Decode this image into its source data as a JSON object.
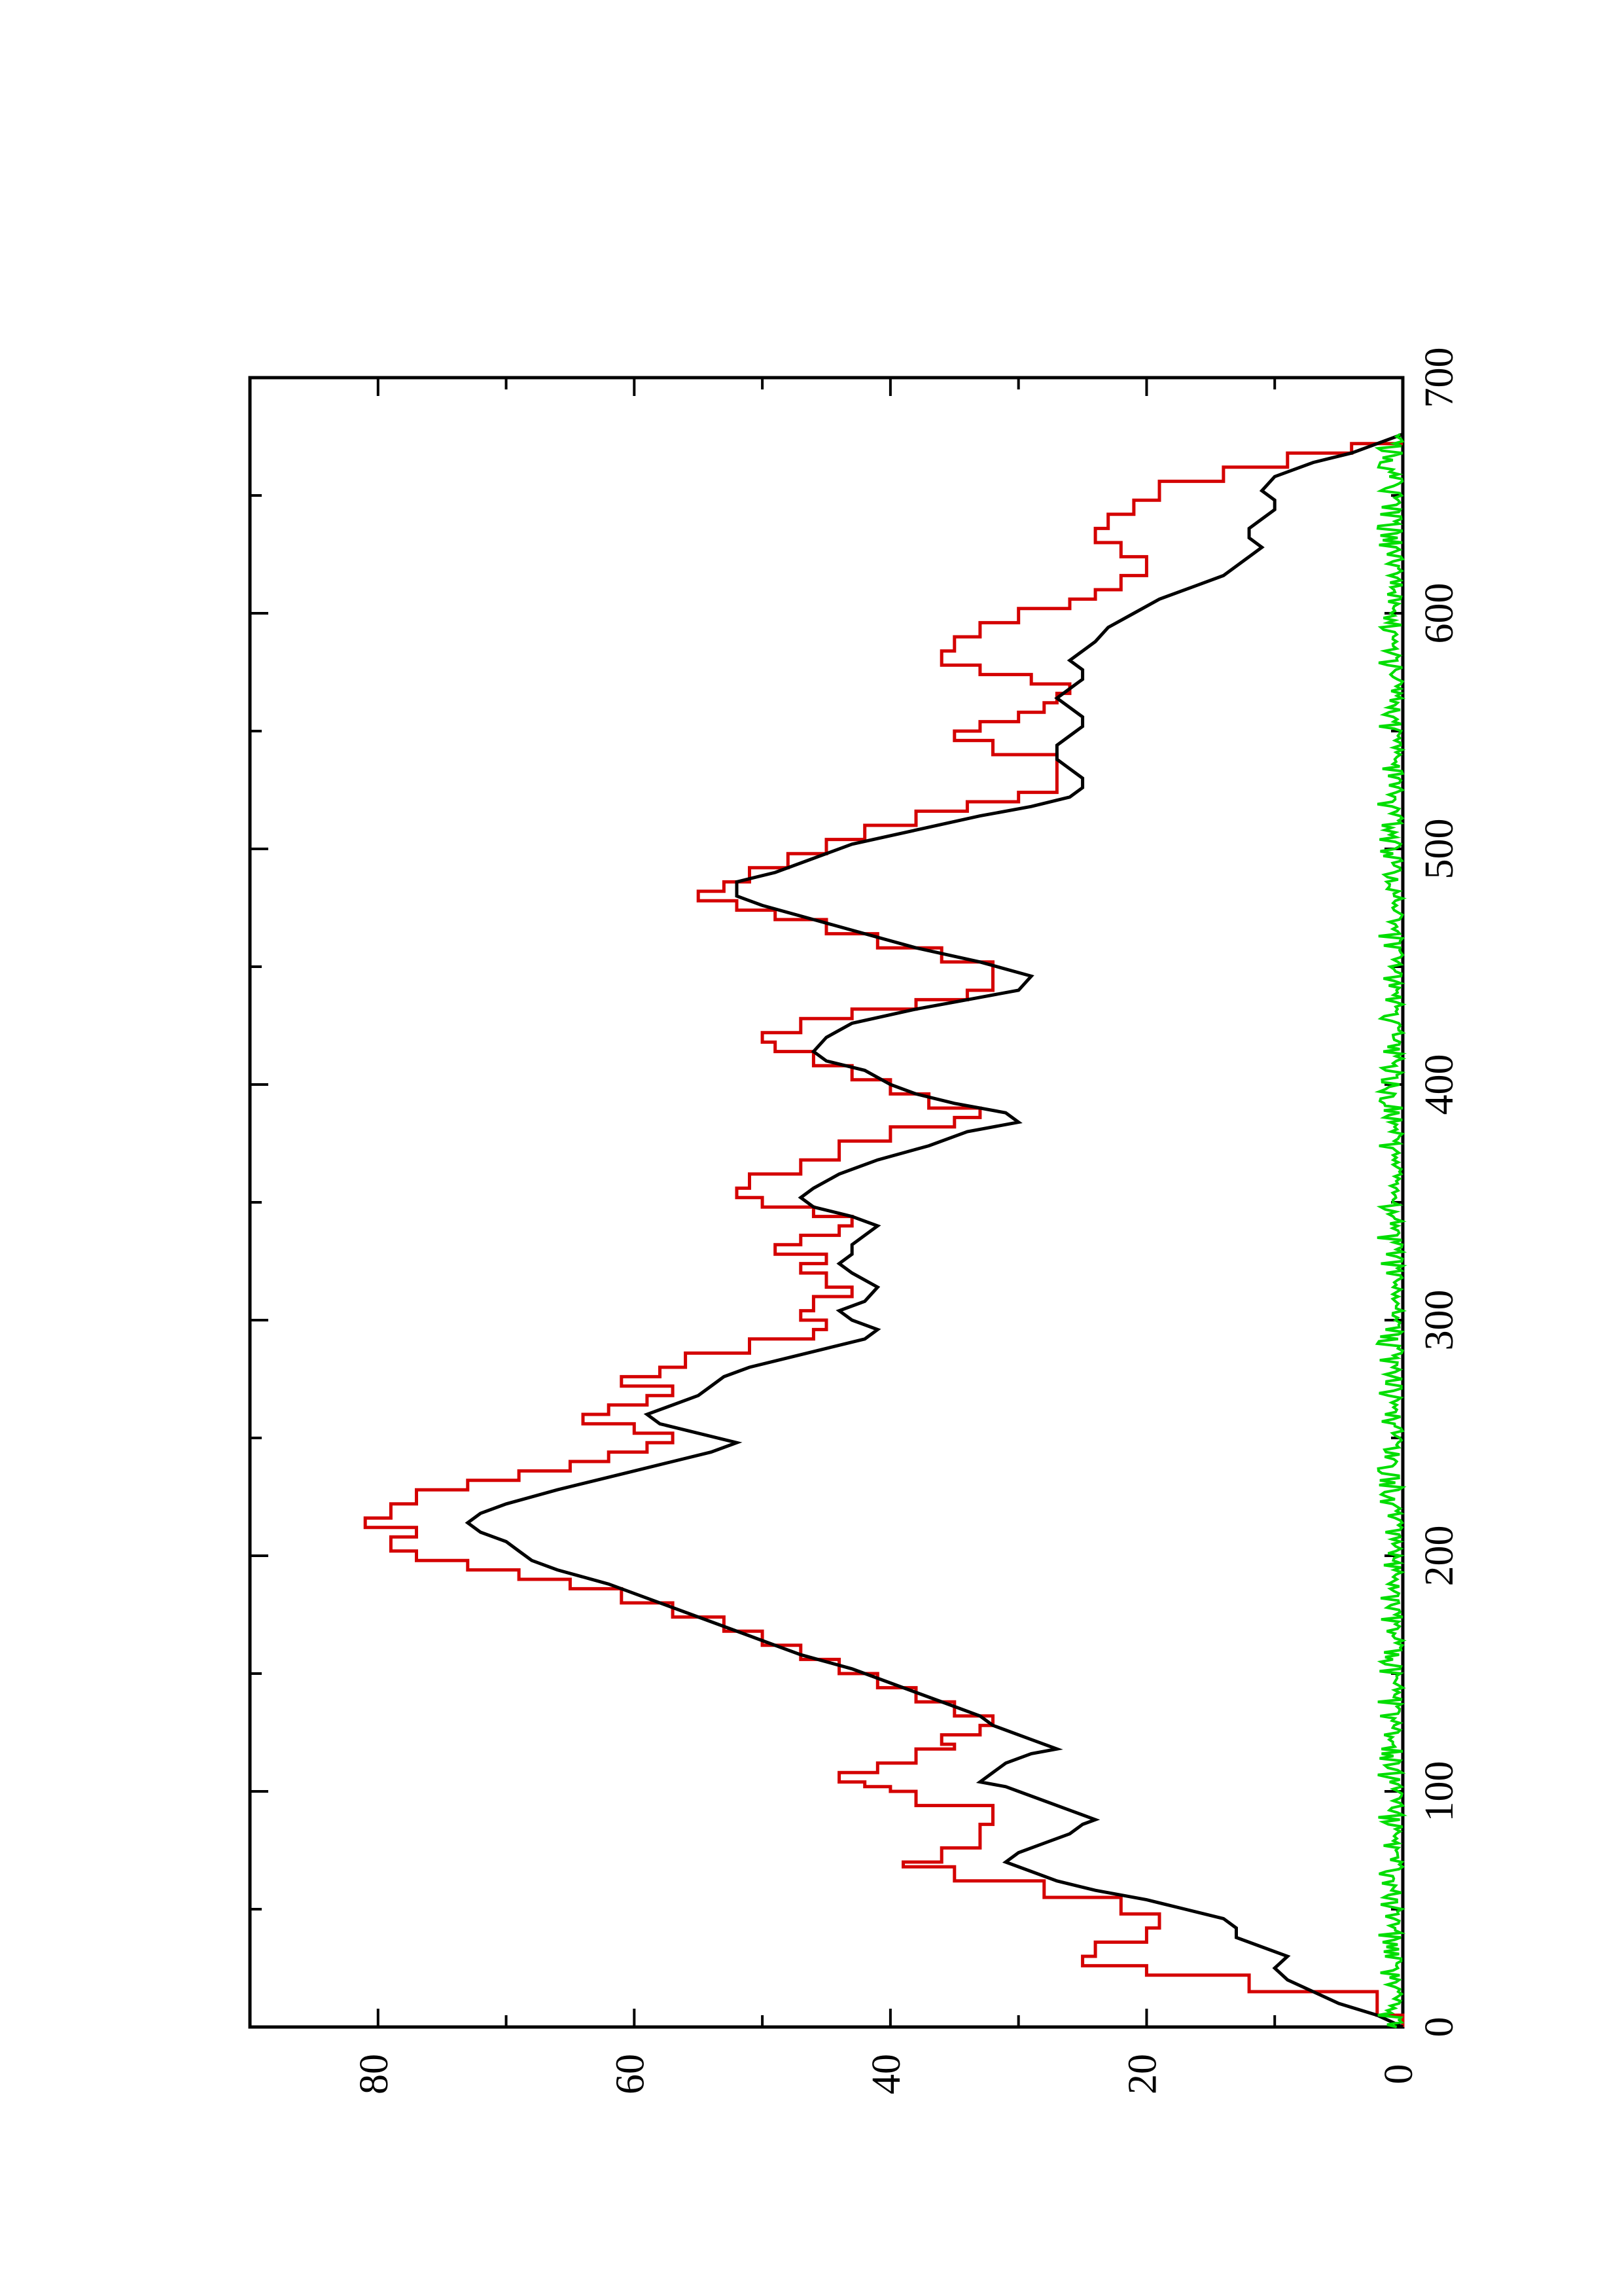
{
  "chart_data": {
    "type": "line",
    "orientation": "rotated-90-ccw",
    "title": "",
    "xlabel": "",
    "ylabel": "",
    "xlim": [
      0,
      700
    ],
    "ylim": [
      0,
      90
    ],
    "x_ticks": [
      0,
      100,
      200,
      300,
      400,
      500,
      600,
      700
    ],
    "x_minor_ticks": [
      50,
      150,
      250,
      350,
      450,
      550,
      650
    ],
    "y_ticks": [
      0,
      20,
      40,
      60,
      80
    ],
    "y_minor_ticks": [
      10,
      30,
      50,
      70
    ],
    "grid": false,
    "legend": "none",
    "series": [
      {
        "color": "#d40000",
        "step": true,
        "points": [
          [
            0,
            0
          ],
          [
            5,
            2
          ],
          [
            15,
            12
          ],
          [
            22,
            20
          ],
          [
            26,
            25
          ],
          [
            30,
            24
          ],
          [
            36,
            20
          ],
          [
            42,
            19
          ],
          [
            48,
            22
          ],
          [
            55,
            28
          ],
          [
            62,
            35
          ],
          [
            68,
            39
          ],
          [
            70,
            36
          ],
          [
            76,
            33
          ],
          [
            86,
            32
          ],
          [
            90,
            32
          ],
          [
            94,
            38
          ],
          [
            100,
            40
          ],
          [
            102,
            42
          ],
          [
            104,
            44
          ],
          [
            108,
            41
          ],
          [
            112,
            38
          ],
          [
            118,
            35
          ],
          [
            120,
            36
          ],
          [
            124,
            33
          ],
          [
            128,
            32
          ],
          [
            132,
            35
          ],
          [
            138,
            38
          ],
          [
            144,
            41
          ],
          [
            150,
            44
          ],
          [
            156,
            47
          ],
          [
            162,
            50
          ],
          [
            168,
            53
          ],
          [
            174,
            57
          ],
          [
            180,
            61
          ],
          [
            186,
            65
          ],
          [
            190,
            69
          ],
          [
            194,
            73
          ],
          [
            198,
            77
          ],
          [
            202,
            79
          ],
          [
            208,
            77
          ],
          [
            212,
            81
          ],
          [
            216,
            79
          ],
          [
            222,
            77
          ],
          [
            228,
            73
          ],
          [
            232,
            69
          ],
          [
            236,
            65
          ],
          [
            240,
            62
          ],
          [
            244,
            59
          ],
          [
            248,
            57
          ],
          [
            252,
            60
          ],
          [
            256,
            64
          ],
          [
            260,
            62
          ],
          [
            264,
            59
          ],
          [
            268,
            57
          ],
          [
            272,
            61
          ],
          [
            276,
            58
          ],
          [
            280,
            56
          ],
          [
            286,
            51
          ],
          [
            292,
            46
          ],
          [
            296,
            45
          ],
          [
            300,
            47
          ],
          [
            304,
            46
          ],
          [
            310,
            43
          ],
          [
            314,
            45
          ],
          [
            320,
            47
          ],
          [
            324,
            45
          ],
          [
            328,
            49
          ],
          [
            332,
            47
          ],
          [
            336,
            44
          ],
          [
            340,
            43
          ],
          [
            344,
            46
          ],
          [
            348,
            50
          ],
          [
            352,
            52
          ],
          [
            356,
            51
          ],
          [
            362,
            47
          ],
          [
            368,
            44
          ],
          [
            376,
            40
          ],
          [
            382,
            35
          ],
          [
            386,
            33
          ],
          [
            390,
            37
          ],
          [
            396,
            40
          ],
          [
            402,
            43
          ],
          [
            408,
            46
          ],
          [
            414,
            49
          ],
          [
            418,
            50
          ],
          [
            422,
            47
          ],
          [
            428,
            43
          ],
          [
            432,
            38
          ],
          [
            436,
            34
          ],
          [
            440,
            32
          ],
          [
            446,
            32
          ],
          [
            452,
            36
          ],
          [
            458,
            41
          ],
          [
            464,
            45
          ],
          [
            470,
            49
          ],
          [
            474,
            52
          ],
          [
            478,
            55
          ],
          [
            482,
            53
          ],
          [
            486,
            51
          ],
          [
            492,
            48
          ],
          [
            498,
            45
          ],
          [
            504,
            42
          ],
          [
            510,
            38
          ],
          [
            516,
            34
          ],
          [
            520,
            30
          ],
          [
            524,
            27
          ],
          [
            528,
            27
          ],
          [
            534,
            27
          ],
          [
            540,
            32
          ],
          [
            546,
            35
          ],
          [
            550,
            33
          ],
          [
            554,
            30
          ],
          [
            558,
            28
          ],
          [
            562,
            27
          ],
          [
            566,
            26
          ],
          [
            570,
            29
          ],
          [
            574,
            33
          ],
          [
            578,
            36
          ],
          [
            584,
            35
          ],
          [
            590,
            33
          ],
          [
            596,
            30
          ],
          [
            602,
            26
          ],
          [
            606,
            24
          ],
          [
            610,
            22
          ],
          [
            616,
            20
          ],
          [
            620,
            20
          ],
          [
            624,
            22
          ],
          [
            630,
            24
          ],
          [
            636,
            23
          ],
          [
            642,
            21
          ],
          [
            648,
            19
          ],
          [
            656,
            14
          ],
          [
            662,
            9
          ],
          [
            668,
            4
          ],
          [
            672,
            0
          ]
        ]
      },
      {
        "color": "#000000",
        "step": false,
        "points": [
          [
            0,
            0
          ],
          [
            5,
            2
          ],
          [
            10,
            5
          ],
          [
            15,
            7
          ],
          [
            20,
            9
          ],
          [
            25,
            10
          ],
          [
            30,
            9
          ],
          [
            34,
            11
          ],
          [
            38,
            13
          ],
          [
            42,
            13
          ],
          [
            46,
            14
          ],
          [
            50,
            17
          ],
          [
            54,
            20
          ],
          [
            58,
            24
          ],
          [
            62,
            27
          ],
          [
            66,
            29
          ],
          [
            70,
            31
          ],
          [
            74,
            30
          ],
          [
            78,
            28
          ],
          [
            82,
            26
          ],
          [
            86,
            25
          ],
          [
            88,
            24
          ],
          [
            92,
            26
          ],
          [
            96,
            28
          ],
          [
            100,
            30
          ],
          [
            102,
            31
          ],
          [
            104,
            33
          ],
          [
            108,
            32
          ],
          [
            112,
            31
          ],
          [
            116,
            29
          ],
          [
            118,
            27
          ],
          [
            122,
            29
          ],
          [
            126,
            31
          ],
          [
            128,
            32
          ],
          [
            132,
            33
          ],
          [
            136,
            35
          ],
          [
            140,
            37
          ],
          [
            146,
            40
          ],
          [
            152,
            43
          ],
          [
            158,
            47
          ],
          [
            164,
            50
          ],
          [
            170,
            53
          ],
          [
            176,
            56
          ],
          [
            182,
            59
          ],
          [
            188,
            62
          ],
          [
            194,
            66
          ],
          [
            198,
            68
          ],
          [
            202,
            69
          ],
          [
            206,
            70
          ],
          [
            210,
            72
          ],
          [
            214,
            73
          ],
          [
            218,
            72
          ],
          [
            222,
            70
          ],
          [
            228,
            66
          ],
          [
            232,
            63
          ],
          [
            236,
            60
          ],
          [
            240,
            57
          ],
          [
            244,
            54
          ],
          [
            248,
            52
          ],
          [
            252,
            55
          ],
          [
            256,
            58
          ],
          [
            260,
            59
          ],
          [
            264,
            57
          ],
          [
            268,
            55
          ],
          [
            272,
            54
          ],
          [
            276,
            53
          ],
          [
            280,
            51
          ],
          [
            284,
            48
          ],
          [
            288,
            45
          ],
          [
            292,
            42
          ],
          [
            296,
            41
          ],
          [
            300,
            43
          ],
          [
            304,
            44
          ],
          [
            308,
            42
          ],
          [
            314,
            41
          ],
          [
            320,
            43
          ],
          [
            324,
            44
          ],
          [
            328,
            43
          ],
          [
            332,
            43
          ],
          [
            336,
            42
          ],
          [
            340,
            41
          ],
          [
            344,
            43
          ],
          [
            348,
            46
          ],
          [
            352,
            47
          ],
          [
            356,
            46
          ],
          [
            362,
            44
          ],
          [
            368,
            41
          ],
          [
            374,
            37
          ],
          [
            380,
            34
          ],
          [
            384,
            30
          ],
          [
            388,
            31
          ],
          [
            392,
            35
          ],
          [
            396,
            38
          ],
          [
            400,
            40
          ],
          [
            406,
            42
          ],
          [
            410,
            45
          ],
          [
            414,
            46
          ],
          [
            420,
            45
          ],
          [
            426,
            43
          ],
          [
            432,
            38
          ],
          [
            436,
            34
          ],
          [
            440,
            30
          ],
          [
            446,
            29
          ],
          [
            452,
            33
          ],
          [
            458,
            38
          ],
          [
            464,
            42
          ],
          [
            470,
            46
          ],
          [
            476,
            50
          ],
          [
            480,
            52
          ],
          [
            486,
            52
          ],
          [
            490,
            49
          ],
          [
            496,
            46
          ],
          [
            502,
            43
          ],
          [
            508,
            38
          ],
          [
            514,
            33
          ],
          [
            518,
            29
          ],
          [
            522,
            26
          ],
          [
            526,
            25
          ],
          [
            530,
            25
          ],
          [
            534,
            26
          ],
          [
            538,
            27
          ],
          [
            544,
            27
          ],
          [
            548,
            26
          ],
          [
            552,
            25
          ],
          [
            556,
            25
          ],
          [
            560,
            26
          ],
          [
            564,
            27
          ],
          [
            568,
            26
          ],
          [
            572,
            25
          ],
          [
            576,
            25
          ],
          [
            580,
            26
          ],
          [
            584,
            25
          ],
          [
            588,
            24
          ],
          [
            594,
            23
          ],
          [
            600,
            21
          ],
          [
            606,
            19
          ],
          [
            612,
            16
          ],
          [
            616,
            14
          ],
          [
            620,
            13
          ],
          [
            624,
            12
          ],
          [
            628,
            11
          ],
          [
            632,
            12
          ],
          [
            636,
            12
          ],
          [
            640,
            11
          ],
          [
            644,
            10
          ],
          [
            648,
            10
          ],
          [
            652,
            11
          ],
          [
            658,
            10
          ],
          [
            664,
            7
          ],
          [
            668,
            4
          ],
          [
            672,
            2
          ],
          [
            676,
            0
          ]
        ]
      },
      {
        "color": "#00dd00",
        "step": false,
        "noise": true,
        "seed": 7,
        "n_points": 676,
        "values_range": [
          0,
          2
        ]
      }
    ]
  }
}
